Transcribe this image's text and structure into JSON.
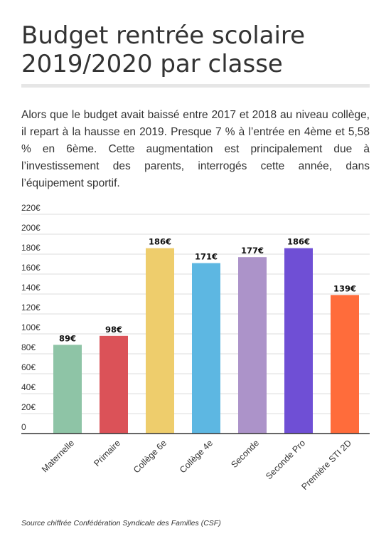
{
  "header": {
    "title_line1": "Budget rentrée scolaire",
    "title_line2": "2019/2020 par classe"
  },
  "intro": "Alors que le budget avait baissé entre 2017 et 2018 au niveau collège, il repart à la hausse en 2019. Presque 7 % à l’entrée en 4ème et 5,58 % en 6ème. Cette augmentation est principalement due à l’investissement des parents, interrogés cette année, dans l’équipement sportif.",
  "source": "Source chiffrée Confédération Syndicale des Familles (CSF)",
  "chart_data": {
    "type": "bar",
    "categories": [
      "Maternelle",
      "Primaire",
      "Collège 6e",
      "Collège 4e",
      "Seconde",
      "Seconde Pro",
      "Première STI 2D"
    ],
    "values": [
      89,
      98,
      186,
      171,
      177,
      186,
      139
    ],
    "value_labels": [
      "89€",
      "98€",
      "186€",
      "171€",
      "177€",
      "186€",
      "139€"
    ],
    "colors": [
      "#8ec4a6",
      "#db5258",
      "#eecd6c",
      "#5db7e2",
      "#ac93c9",
      "#6f4fd5",
      "#ff6c3b"
    ],
    "ylim": [
      0,
      220
    ],
    "yticks": [
      0,
      20,
      40,
      60,
      80,
      100,
      120,
      140,
      160,
      180,
      200,
      220
    ],
    "ytick_labels": [
      "0",
      "20€",
      "40€",
      "60€",
      "80€",
      "100€",
      "120€",
      "140€",
      "160€",
      "180€",
      "200€",
      "220€"
    ],
    "grid": true,
    "legend": "none"
  }
}
